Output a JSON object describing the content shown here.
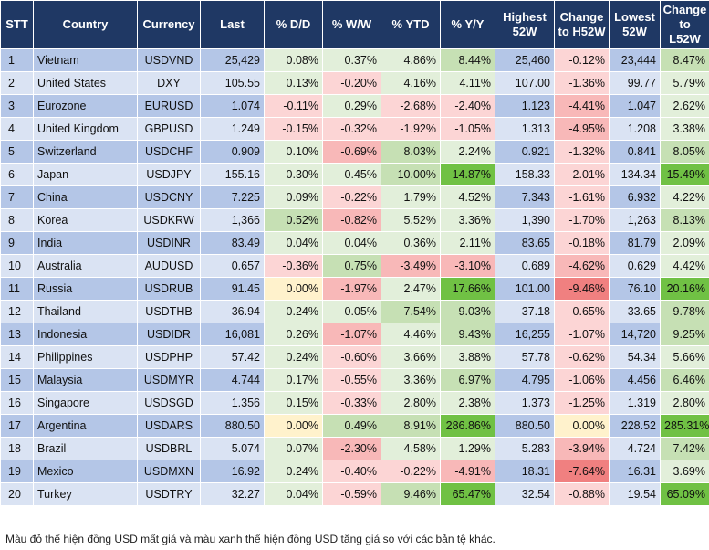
{
  "headers": [
    "STT",
    "Country",
    "Currency",
    "Last",
    "% D/D",
    "% W/W",
    "% YTD",
    "% Y/Y",
    "Highest 52W",
    "Change to H52W",
    "Lowest 52W",
    "Change to L52W"
  ],
  "rows": [
    {
      "stt": "1",
      "country": "Vietnam",
      "currency": "USDVND",
      "last": "25,429",
      "dd": "0.08%",
      "ww": "0.37%",
      "ytd": "4.86%",
      "yy": "8.44%",
      "h52": "25,460",
      "ch52": "-0.12%",
      "l52": "23,444",
      "cl52": "8.47%"
    },
    {
      "stt": "2",
      "country": "United States",
      "currency": "DXY",
      "last": "105.55",
      "dd": "0.13%",
      "ww": "-0.20%",
      "ytd": "4.16%",
      "yy": "4.11%",
      "h52": "107.00",
      "ch52": "-1.36%",
      "l52": "99.77",
      "cl52": "5.79%"
    },
    {
      "stt": "3",
      "country": "Eurozone",
      "currency": "EURUSD",
      "last": "1.074",
      "dd": "-0.11%",
      "ww": "0.29%",
      "ytd": "-2.68%",
      "yy": "-2.40%",
      "h52": "1.123",
      "ch52": "-4.41%",
      "l52": "1.047",
      "cl52": "2.62%"
    },
    {
      "stt": "4",
      "country": "United Kingdom",
      "currency": "GBPUSD",
      "last": "1.249",
      "dd": "-0.15%",
      "ww": "-0.32%",
      "ytd": "-1.92%",
      "yy": "-1.05%",
      "h52": "1.313",
      "ch52": "-4.95%",
      "l52": "1.208",
      "cl52": "3.38%"
    },
    {
      "stt": "5",
      "country": "Switzerland",
      "currency": "USDCHF",
      "last": "0.909",
      "dd": "0.10%",
      "ww": "-0.69%",
      "ytd": "8.03%",
      "yy": "2.24%",
      "h52": "0.921",
      "ch52": "-1.32%",
      "l52": "0.841",
      "cl52": "8.05%"
    },
    {
      "stt": "6",
      "country": "Japan",
      "currency": "USDJPY",
      "last": "155.16",
      "dd": "0.30%",
      "ww": "0.45%",
      "ytd": "10.00%",
      "yy": "14.87%",
      "h52": "158.33",
      "ch52": "-2.01%",
      "l52": "134.34",
      "cl52": "15.49%"
    },
    {
      "stt": "7",
      "country": "China",
      "currency": "USDCNY",
      "last": "7.225",
      "dd": "0.09%",
      "ww": "-0.22%",
      "ytd": "1.79%",
      "yy": "4.52%",
      "h52": "7.343",
      "ch52": "-1.61%",
      "l52": "6.932",
      "cl52": "4.22%"
    },
    {
      "stt": "8",
      "country": "Korea",
      "currency": "USDKRW",
      "last": "1,366",
      "dd": "0.52%",
      "ww": "-0.82%",
      "ytd": "5.52%",
      "yy": "3.36%",
      "h52": "1,390",
      "ch52": "-1.70%",
      "l52": "1,263",
      "cl52": "8.13%"
    },
    {
      "stt": "9",
      "country": "India",
      "currency": "USDINR",
      "last": "83.49",
      "dd": "0.04%",
      "ww": "0.04%",
      "ytd": "0.36%",
      "yy": "2.11%",
      "h52": "83.65",
      "ch52": "-0.18%",
      "l52": "81.79",
      "cl52": "2.09%"
    },
    {
      "stt": "10",
      "country": "Australia",
      "currency": "AUDUSD",
      "last": "0.657",
      "dd": "-0.36%",
      "ww": "0.75%",
      "ytd": "-3.49%",
      "yy": "-3.10%",
      "h52": "0.689",
      "ch52": "-4.62%",
      "l52": "0.629",
      "cl52": "4.42%"
    },
    {
      "stt": "11",
      "country": "Russia",
      "currency": "USDRUB",
      "last": "91.45",
      "dd": "0.00%",
      "ww": "-1.97%",
      "ytd": "2.47%",
      "yy": "17.66%",
      "h52": "101.00",
      "ch52": "-9.46%",
      "l52": "76.10",
      "cl52": "20.16%"
    },
    {
      "stt": "12",
      "country": "Thailand",
      "currency": "USDTHB",
      "last": "36.94",
      "dd": "0.24%",
      "ww": "0.05%",
      "ytd": "7.54%",
      "yy": "9.03%",
      "h52": "37.18",
      "ch52": "-0.65%",
      "l52": "33.65",
      "cl52": "9.78%"
    },
    {
      "stt": "13",
      "country": "Indonesia",
      "currency": "USDIDR",
      "last": "16,081",
      "dd": "0.26%",
      "ww": "-1.07%",
      "ytd": "4.46%",
      "yy": "9.43%",
      "h52": "16,255",
      "ch52": "-1.07%",
      "l52": "14,720",
      "cl52": "9.25%"
    },
    {
      "stt": "14",
      "country": "Philippines",
      "currency": "USDPHP",
      "last": "57.42",
      "dd": "0.24%",
      "ww": "-0.60%",
      "ytd": "3.66%",
      "yy": "3.88%",
      "h52": "57.78",
      "ch52": "-0.62%",
      "l52": "54.34",
      "cl52": "5.66%"
    },
    {
      "stt": "15",
      "country": "Malaysia",
      "currency": "USDMYR",
      "last": "4.744",
      "dd": "0.17%",
      "ww": "-0.55%",
      "ytd": "3.36%",
      "yy": "6.97%",
      "h52": "4.795",
      "ch52": "-1.06%",
      "l52": "4.456",
      "cl52": "6.46%"
    },
    {
      "stt": "16",
      "country": "Singapore",
      "currency": "USDSGD",
      "last": "1.356",
      "dd": "0.15%",
      "ww": "-0.33%",
      "ytd": "2.80%",
      "yy": "2.38%",
      "h52": "1.373",
      "ch52": "-1.25%",
      "l52": "1.319",
      "cl52": "2.80%"
    },
    {
      "stt": "17",
      "country": "Argentina",
      "currency": "USDARS",
      "last": "880.50",
      "dd": "0.00%",
      "ww": "0.49%",
      "ytd": "8.91%",
      "yy": "286.86%",
      "h52": "880.50",
      "ch52": "0.00%",
      "l52": "228.52",
      "cl52": "285.31%"
    },
    {
      "stt": "18",
      "country": "Brazil",
      "currency": "USDBRL",
      "last": "5.074",
      "dd": "0.07%",
      "ww": "-2.30%",
      "ytd": "4.58%",
      "yy": "1.29%",
      "h52": "5.283",
      "ch52": "-3.94%",
      "l52": "4.724",
      "cl52": "7.42%"
    },
    {
      "stt": "19",
      "country": "Mexico",
      "currency": "USDMXN",
      "last": "16.92",
      "dd": "0.24%",
      "ww": "-0.40%",
      "ytd": "-0.22%",
      "yy": "-4.91%",
      "h52": "18.31",
      "ch52": "-7.64%",
      "l52": "16.31",
      "cl52": "3.69%"
    },
    {
      "stt": "20",
      "country": "Turkey",
      "currency": "USDTRY",
      "last": "32.27",
      "dd": "0.04%",
      "ww": "-0.59%",
      "ytd": "9.46%",
      "yy": "65.47%",
      "h52": "32.54",
      "ch52": "-0.88%",
      "l52": "19.54",
      "cl52": "65.09%"
    }
  ],
  "footnote": "Màu đỏ thể hiện đồng USD mất giá và màu xanh thể hiện đồng USD tăng giá so với các bản tệ khác.",
  "colors": {
    "header": "#1f3864",
    "row_odd": "#b4c6e7",
    "row_even": "#dae3f3",
    "green_light": "#e2efda",
    "green": "#c6e0b4",
    "green_strong": "#70c144",
    "red_light": "#fcd5d5",
    "red": "#f8b8b8",
    "red_strong": "#f08080",
    "neutral": "#fff2cc"
  }
}
